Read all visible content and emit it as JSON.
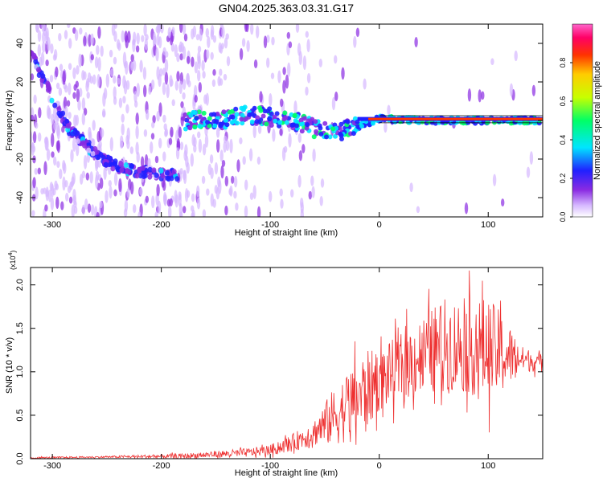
{
  "title": "GN04.2025.363.03.31.G17",
  "chart_data": [
    {
      "type": "heatmap",
      "name": "spectrogram",
      "xlabel": "Height of straight line (km)",
      "ylabel": "Frequency (Hz)",
      "xlim": [
        -320,
        150
      ],
      "ylim": [
        -50,
        50
      ],
      "xticks": [
        -300,
        -200,
        -100,
        0,
        100
      ],
      "yticks": [
        -40,
        -20,
        0,
        20,
        40
      ],
      "colorbar": {
        "label": "Normalized spectral amplitude",
        "range": [
          0.0,
          1.0
        ],
        "ticks": [
          "0.0",
          "0.2",
          "0.4",
          "0.6",
          "0.8"
        ],
        "colors": [
          "#ffffff",
          "#d6b8ff",
          "#8a2be2",
          "#2020ff",
          "#00e5ff",
          "#00ff66",
          "#c8ff00",
          "#ffcc00",
          "#ff3300",
          "#ff0066",
          "#ff66cc"
        ]
      },
      "features": [
        {
          "name": "descending frequency trace",
          "x": [
            -320,
            -300,
            -285,
            -270,
            -255,
            -240,
            -225,
            -210,
            -195,
            -185
          ],
          "y": [
            35,
            12,
            -4,
            -12,
            -20,
            -24,
            -26,
            -27,
            -28,
            -28
          ]
        },
        {
          "name": "signal band",
          "x": [
            -180,
            -150,
            -120,
            -100,
            -80,
            -60,
            -40,
            -20,
            0,
            50,
            100,
            150
          ],
          "y": [
            0,
            0,
            3,
            2,
            0,
            -4,
            -6,
            -3,
            1,
            0,
            0,
            0
          ]
        }
      ]
    },
    {
      "type": "line",
      "name": "snr",
      "xlabel": "Height of straight line (km)",
      "ylabel": "SNR (10 * v/v)",
      "scale_label": "(x10",
      "scale_exp": "4",
      "xlim": [
        -320,
        150
      ],
      "ylim": [
        0,
        2.2
      ],
      "xticks": [
        -300,
        -200,
        -100,
        0,
        100
      ],
      "yticks": [
        "0.0",
        "0.5",
        "1.0",
        "1.5",
        "2.0"
      ],
      "color": "#ee3030",
      "envelope": {
        "x": [
          -320,
          -250,
          -180,
          -150,
          -120,
          -100,
          -80,
          -60,
          -50,
          -40,
          -30,
          -20,
          -10,
          0,
          20,
          40,
          60,
          80,
          100,
          115,
          130,
          150
        ],
        "mean": [
          0.01,
          0.02,
          0.03,
          0.05,
          0.07,
          0.1,
          0.18,
          0.3,
          0.4,
          0.5,
          0.6,
          0.7,
          0.8,
          0.9,
          1.05,
          1.2,
          1.3,
          1.3,
          1.25,
          1.2,
          1.15,
          1.1
        ],
        "amp": [
          0.01,
          0.01,
          0.03,
          0.04,
          0.05,
          0.06,
          0.1,
          0.15,
          0.25,
          0.35,
          0.4,
          0.45,
          0.45,
          0.35,
          0.4,
          0.45,
          0.55,
          0.55,
          0.6,
          0.45,
          0.15,
          0.1
        ]
      }
    }
  ]
}
